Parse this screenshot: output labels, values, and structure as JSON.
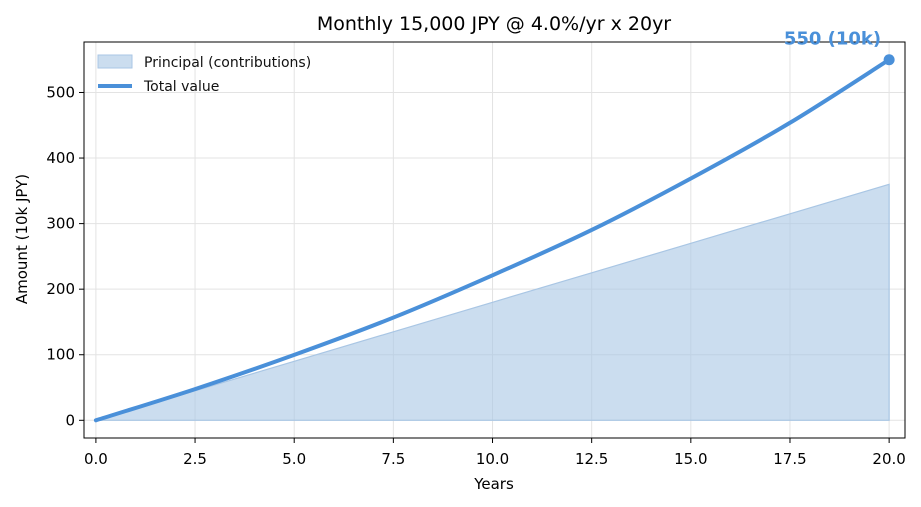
{
  "chart_data": {
    "type": "area",
    "title": "Monthly 15,000 JPY @ 4.0%/yr x 20yr",
    "xlabel": "Years",
    "ylabel": "Amount (10k JPY)",
    "xlim": [
      -0.3,
      20.4
    ],
    "ylim": [
      -27,
      577
    ],
    "xticks": [
      "0.0",
      "2.5",
      "5.0",
      "7.5",
      "10.0",
      "12.5",
      "15.0",
      "17.5",
      "20.0"
    ],
    "yticks": [
      "0",
      "100",
      "200",
      "300",
      "400",
      "500"
    ],
    "grid": true,
    "legend_position": "top-left",
    "x": [
      0,
      2.5,
      5,
      7.5,
      10,
      12.5,
      15,
      17.5,
      20
    ],
    "series": [
      {
        "name": "Principal (contributions)",
        "kind": "area",
        "color": "#a9c6e4",
        "values": [
          0,
          45,
          90,
          135,
          180,
          225,
          270,
          315,
          360
        ]
      },
      {
        "name": "Total value",
        "kind": "line",
        "color": "#4a90d9",
        "values": [
          0,
          47.6,
          99.8,
          156.7,
          221.2,
          290.3,
          368.8,
          453.8,
          550
        ]
      }
    ],
    "annotation": {
      "text": "550 (10k)",
      "x": 20,
      "y": 550,
      "color": "#4a90d9"
    }
  }
}
